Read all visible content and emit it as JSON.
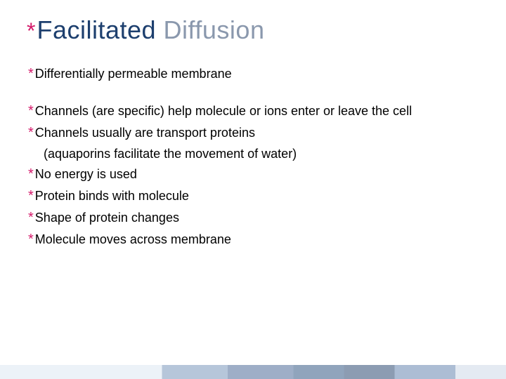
{
  "title": {
    "word1": "Facilitated",
    "word2": "Diffusion",
    "asterisk": "*",
    "word1_color": "#1d3f6e",
    "word2_color": "#8a98ad",
    "asterisk_color": "#d41a6a",
    "fontsize": 36
  },
  "bullets": [
    {
      "text": "Differentially permeable membrane"
    },
    {
      "text": "Channels (are specific) help molecule or ions enter or leave the cell"
    },
    {
      "text": "Channels usually are transport proteins"
    },
    {
      "text": "No energy is used"
    },
    {
      "text": "Protein binds with molecule"
    },
    {
      "text": "Shape of protein changes"
    },
    {
      "text": "Molecule moves across membrane"
    }
  ],
  "indented_line": "(aquaporins facilitate the movement of water)",
  "bullet_asterisk": "*",
  "bullet_asterisk_color": "#d41a6a",
  "body_fontsize": 18,
  "body_color": "#000000",
  "background_color": "#ffffff",
  "footer_stripe_colors": [
    "#d8e4f0",
    "#6d8db4",
    "#3c5e8f",
    "#224a7a",
    "#1a3a66",
    "#5a7ba8",
    "#c8d6e6"
  ],
  "slide_width": 720,
  "slide_height": 540
}
